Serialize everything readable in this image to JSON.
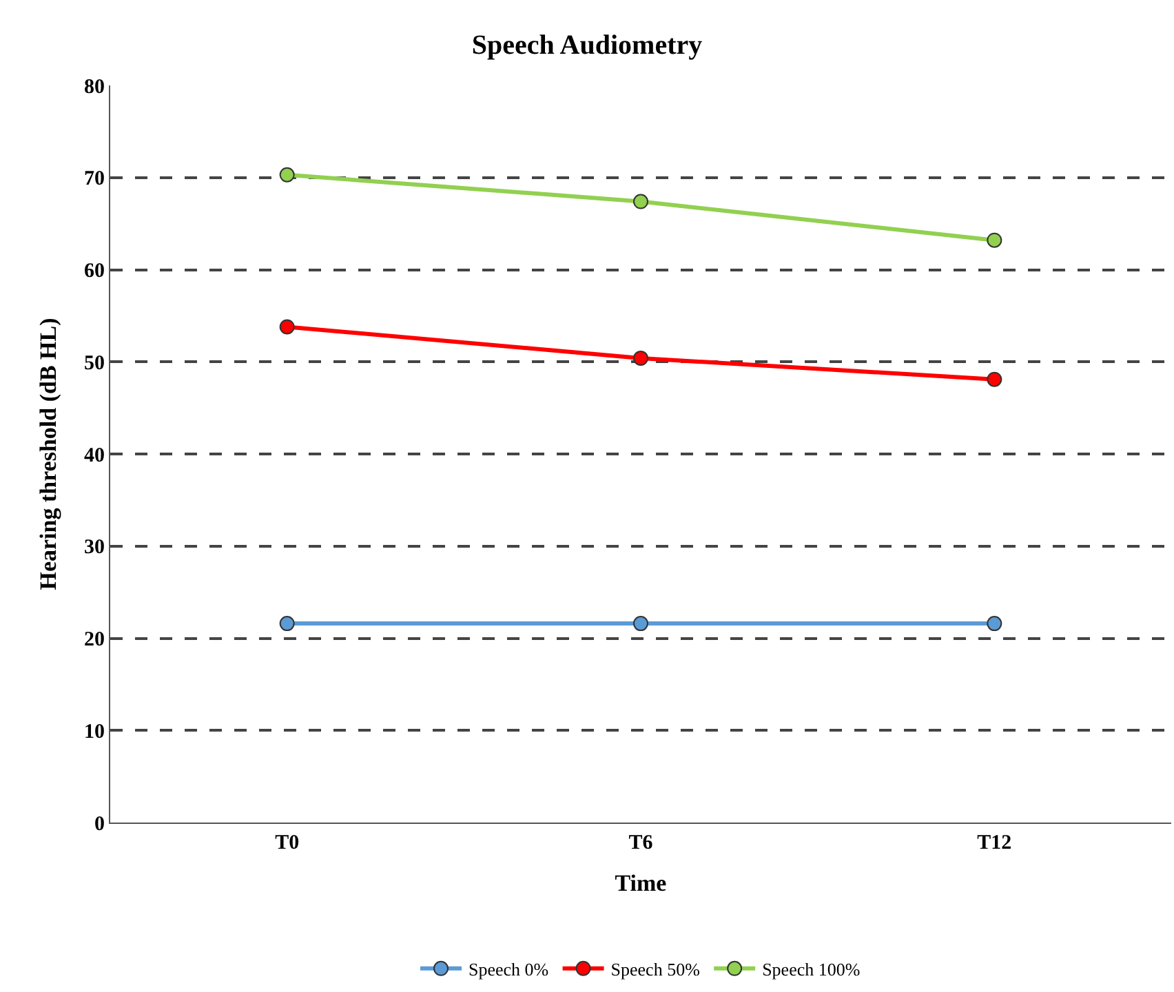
{
  "chart_data": {
    "type": "line",
    "title": "Speech Audiometry",
    "xlabel": "Time",
    "ylabel": "Hearing threshold (dB HL)",
    "categories": [
      "T0",
      "T6",
      "T12"
    ],
    "series": [
      {
        "name": "Speech 0%",
        "color": "#5b9bd5",
        "values": [
          21.6,
          21.6,
          21.6
        ]
      },
      {
        "name": "Speech 50%",
        "color": "#ff0000",
        "values": [
          53.8,
          50.4,
          48.1
        ]
      },
      {
        "name": "Speech 100%",
        "color": "#92d050",
        "values": [
          70.3,
          67.4,
          63.2
        ]
      }
    ],
    "ylim": [
      0,
      80
    ],
    "yticks": [
      0,
      10,
      20,
      30,
      40,
      50,
      60,
      70,
      80
    ],
    "grid": "y",
    "legend": "bottom",
    "marker": "circle",
    "line_style": "solid"
  }
}
